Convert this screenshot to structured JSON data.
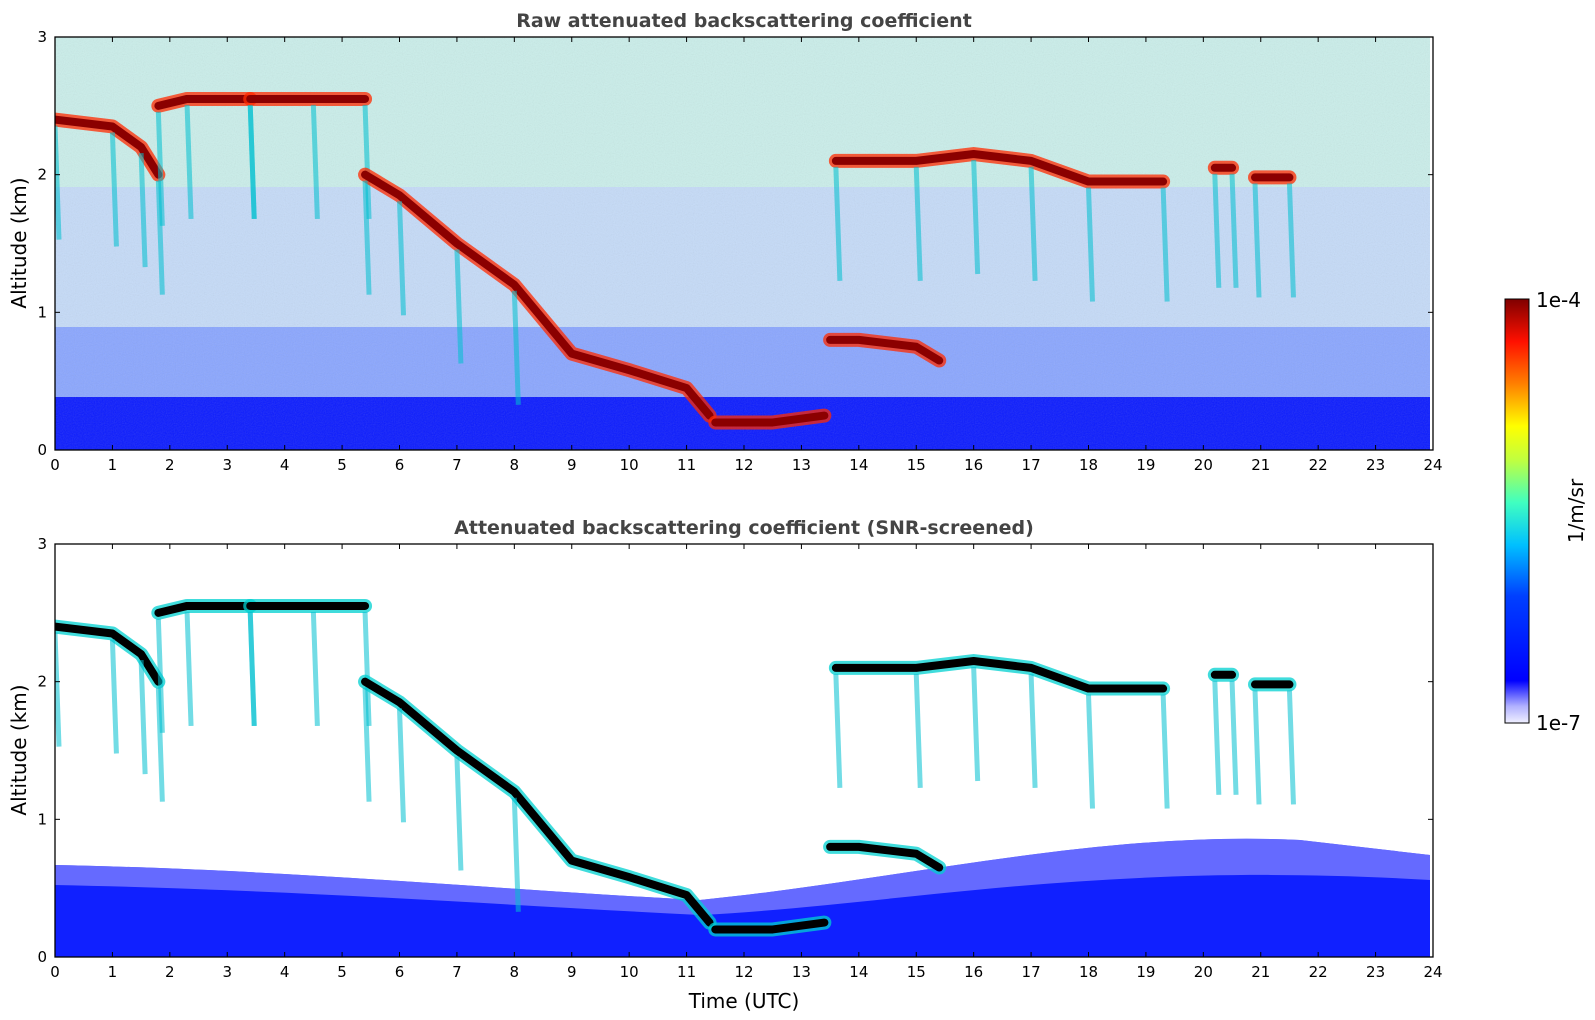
{
  "chart_data": [
    {
      "type": "heatmap",
      "title": "Raw attenuated backscattering coefficient",
      "xlabel": "",
      "ylabel": "Altitude (km)",
      "xlim": [
        0,
        24
      ],
      "ylim": [
        0,
        3
      ],
      "xticks": [
        "0",
        "1",
        "2",
        "3",
        "4",
        "5",
        "6",
        "7",
        "8",
        "9",
        "10",
        "11",
        "12",
        "13",
        "14",
        "15",
        "16",
        "17",
        "18",
        "19",
        "20",
        "21",
        "22",
        "23",
        "24"
      ],
      "yticks": [
        "0",
        "1",
        "2",
        "3"
      ],
      "data_extent_hours": 23.8,
      "cloud_layers": [
        {
          "t": [
            0,
            1.0,
            1.5,
            1.8
          ],
          "alt": [
            2.4,
            2.35,
            2.2,
            2.0
          ]
        },
        {
          "t": [
            1.8,
            2.3,
            3.4
          ],
          "alt": [
            2.5,
            2.55,
            2.55
          ]
        },
        {
          "t": [
            3.4,
            4.5,
            5.4
          ],
          "alt": [
            2.55,
            2.55,
            2.55
          ]
        },
        {
          "t": [
            5.4,
            6.0,
            7.0,
            8.0,
            9.0,
            10.0,
            11.0,
            11.4
          ],
          "alt": [
            2.0,
            1.85,
            1.5,
            1.2,
            0.7,
            0.58,
            0.45,
            0.25
          ]
        },
        {
          "t": [
            11.5,
            12.5,
            13.4
          ],
          "alt": [
            0.2,
            0.2,
            0.25
          ]
        },
        {
          "t": [
            13.5,
            14.0,
            15.0,
            15.4
          ],
          "alt": [
            0.8,
            0.8,
            0.75,
            0.65
          ]
        },
        {
          "t": [
            13.6,
            15.0,
            16.0,
            17.0,
            18.0,
            19.3
          ],
          "alt": [
            2.1,
            2.1,
            2.15,
            2.1,
            1.95,
            1.95
          ]
        },
        {
          "t": [
            20.2,
            20.5
          ],
          "alt": [
            2.05,
            2.05
          ]
        },
        {
          "t": [
            20.9,
            21.5
          ],
          "alt": [
            1.98,
            1.98
          ]
        }
      ],
      "notes": ""
    },
    {
      "type": "heatmap",
      "title": "Attenuated backscattering coefficient (SNR-screened)",
      "xlabel": "Time (UTC)",
      "ylabel": "Altitude (km)",
      "xlim": [
        0,
        24
      ],
      "ylim": [
        0,
        3
      ],
      "xticks": [
        "0",
        "1",
        "2",
        "3",
        "4",
        "5",
        "6",
        "7",
        "8",
        "9",
        "10",
        "11",
        "12",
        "13",
        "14",
        "15",
        "16",
        "17",
        "18",
        "19",
        "20",
        "21",
        "22",
        "23",
        "24"
      ],
      "yticks": [
        "0",
        "1",
        "2",
        "3"
      ],
      "data_extent_hours": 23.8,
      "screened": true
    }
  ],
  "colorbar": {
    "label": "1/m/sr",
    "max_label": "1e-4",
    "min_label": "1e-7",
    "colormap": "jet",
    "colors": [
      "#e8e8ff",
      "#0000ff",
      "#00a0ff",
      "#00ffff",
      "#80ff80",
      "#ffff00",
      "#ff8000",
      "#ff0000",
      "#800000"
    ]
  }
}
